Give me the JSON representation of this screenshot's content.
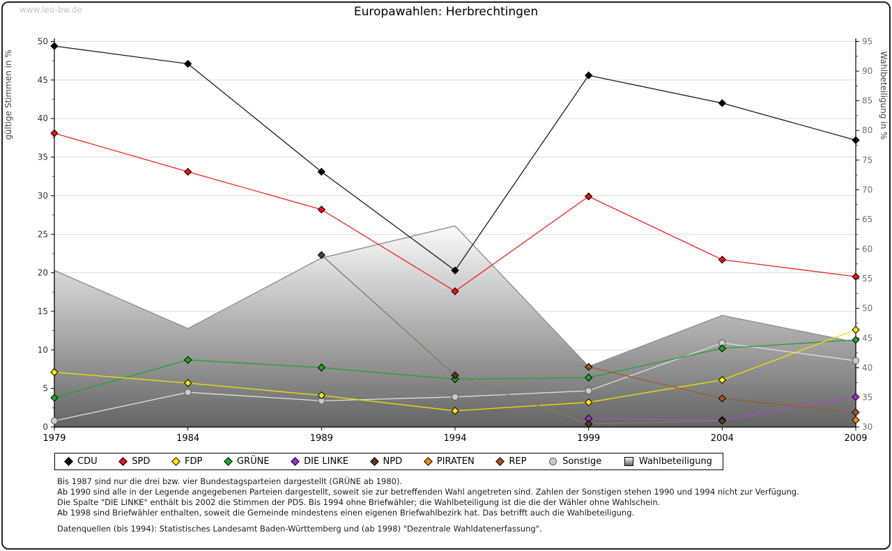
{
  "watermark": "www.leo-bw.de",
  "title": "Europawahlen: Herbrechtingen",
  "chart_data": {
    "type": "line",
    "title": "Europawahlen: Herbrechtingen",
    "x": [
      1979,
      1984,
      1989,
      1994,
      1999,
      2004,
      2009
    ],
    "y_left": {
      "label": "gültige Stimmen in %",
      "min": 0,
      "max": 50,
      "tick_step": 5
    },
    "y_right": {
      "label": "Wahlbeteiligung in %",
      "min": 30,
      "max": 95,
      "tick_step": 5
    },
    "grid": true,
    "legend_position": "bottom",
    "series": [
      {
        "name": "CDU",
        "color": "#000000",
        "line_color": "#1a1a1a",
        "marker": "diamond",
        "values": [
          49.4,
          47.1,
          33.1,
          20.3,
          45.6,
          42.0,
          37.2
        ]
      },
      {
        "name": "SPD",
        "color": "#e60f1e",
        "line_color": "#ee2222",
        "marker": "diamond",
        "values": [
          38.1,
          33.1,
          28.2,
          17.6,
          29.9,
          21.7,
          19.5
        ]
      },
      {
        "name": "FDP",
        "color": "#ffe80a",
        "line_color": "#f0e000",
        "marker": "diamond",
        "values": [
          7.1,
          5.7,
          4.1,
          2.1,
          3.2,
          6.1,
          12.6
        ]
      },
      {
        "name": "GRÜNE",
        "color": "#1ca52c",
        "line_color": "#1ca52c",
        "marker": "diamond",
        "values": [
          3.8,
          8.7,
          7.7,
          6.2,
          6.4,
          10.2,
          11.3
        ]
      },
      {
        "name": "DIE LINKE",
        "color": "#9a30c9",
        "line_color": "#a64dc8",
        "marker": "diamond",
        "values": [
          null,
          null,
          null,
          null,
          1.1,
          0.9,
          3.9
        ]
      },
      {
        "name": "NPD",
        "color": "#503b27",
        "line_color": "#88775f",
        "marker": "diamond",
        "values": [
          null,
          null,
          22.3,
          6.7,
          0.4,
          0.8,
          null
        ]
      },
      {
        "name": "PIRATEN",
        "color": "#f28a1a",
        "line_color": "#f28a1a",
        "marker": "diamond",
        "values": [
          null,
          null,
          null,
          null,
          null,
          null,
          0.9
        ]
      },
      {
        "name": "REP",
        "color": "#9e5629",
        "line_color": "#a05a2c",
        "marker": "diamond",
        "values": [
          null,
          null,
          null,
          null,
          7.8,
          3.7,
          1.9
        ]
      },
      {
        "name": "Sonstige",
        "color": "#cbcbcb",
        "line_color": "#dedede",
        "marker": "circle",
        "marker_stroke": "#5a5a5a",
        "values": [
          0.8,
          4.5,
          3.4,
          3.9,
          4.7,
          10.9,
          8.6
        ]
      }
    ],
    "area": {
      "name": "Wahlbeteiligung",
      "axis": "right",
      "values": [
        56.4,
        46.6,
        58.5,
        63.9,
        40.2,
        48.8,
        44.3
      ],
      "fill_top": "#fbfbfb",
      "fill_bottom": "#646464",
      "stroke": "#8f8f8f"
    }
  },
  "footnotes": [
    "Bis 1987 sind nur die drei bzw. vier Bundestagsparteien dargestellt (GRÜNE ab 1980).",
    "Ab 1990 sind alle in der Legende angegebenen Parteien dargestellt, soweit sie zur betreffenden Wahl angetreten sind. Zahlen der Sonstigen stehen 1990 und 1994 nicht zur Verfügung.",
    "Die Spalte \"DIE LINKE\" enthält bis 2002 die Stimmen der PDS. Bis 1994 ohne Briefwähler; die Wahlbeteiligung ist die die der Wähler ohne Wahlschein.",
    "Ab 1998 sind Briefwähler enthalten, soweit die Gemeinde mindestens einen eigenen Briefwahlbezirk hat. Das betrifft auch die Wahlbeteiligung."
  ],
  "datasource": "Datenquellen (bis 1994): Statistisches Landesamt Baden-Württemberg und (ab 1998) \"Dezentrale Wahldatenerfassung\"."
}
